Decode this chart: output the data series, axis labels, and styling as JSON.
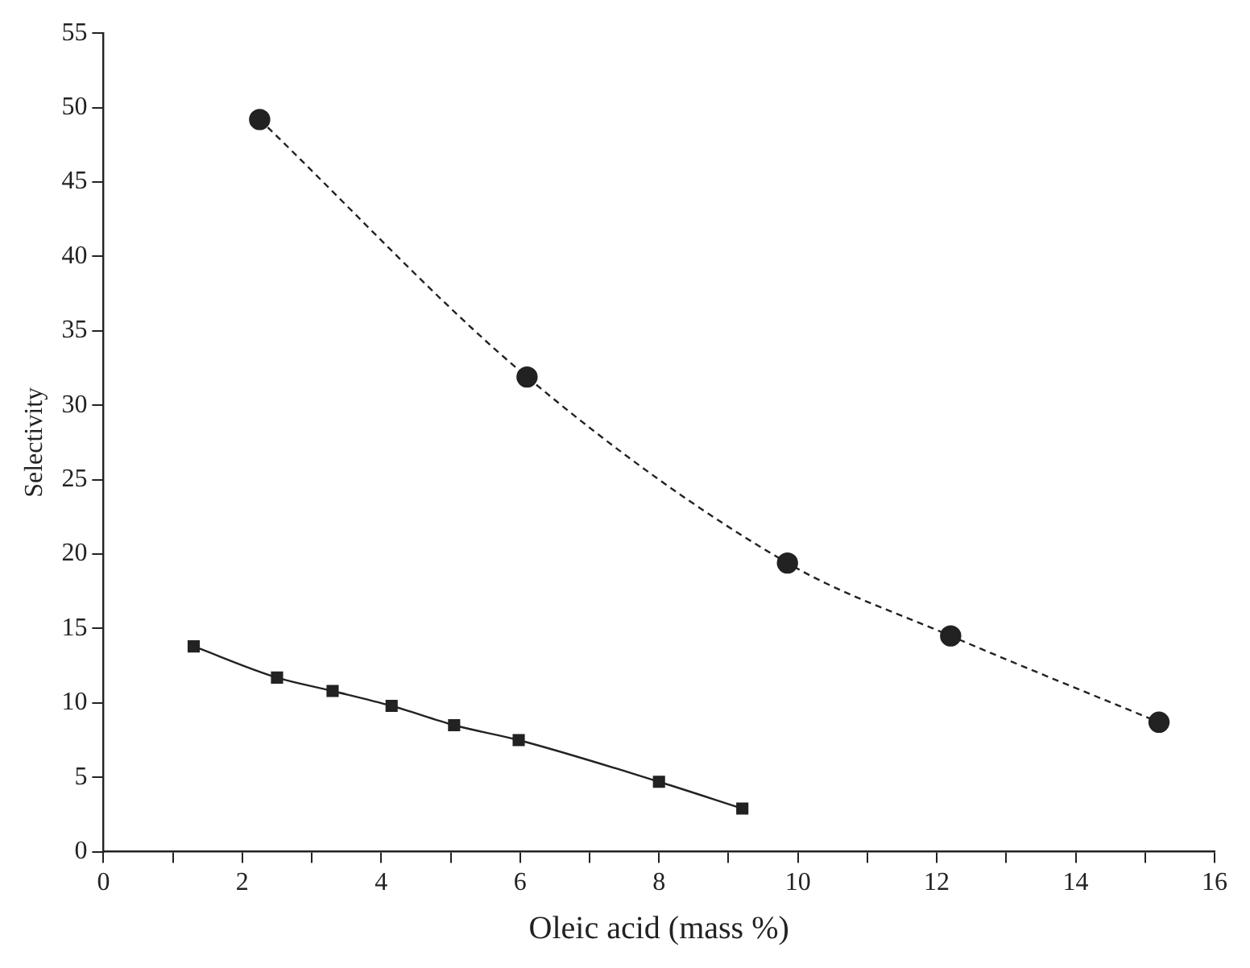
{
  "chart_data": {
    "type": "line",
    "xlabel": "Oleic acid (mass %)",
    "ylabel": "Selectivity",
    "xlim": [
      0,
      16
    ],
    "ylim": [
      0,
      55
    ],
    "xticks": [
      0,
      {
        "value": 1,
        "label": null
      },
      2,
      {
        "value": 3,
        "label": null
      },
      4,
      {
        "value": 5,
        "label": null
      },
      6,
      {
        "value": 7,
        "label": null
      },
      8,
      {
        "value": 9,
        "label": null
      },
      10,
      {
        "value": 11,
        "label": null
      },
      12,
      {
        "value": 13,
        "label": null
      },
      14,
      {
        "value": 15,
        "label": null
      },
      16
    ],
    "yticks": [
      0,
      5,
      10,
      15,
      20,
      25,
      30,
      35,
      40,
      45,
      50,
      55
    ],
    "grid": false,
    "legend": false,
    "series": [
      {
        "color": "#222222",
        "marker": "circle",
        "line_style": "dashed",
        "x": [
          2.25,
          6.1,
          9.85,
          12.2,
          15.2
        ],
        "values": [
          49.2,
          31.9,
          19.4,
          14.5,
          8.7
        ]
      },
      {
        "color": "#222222",
        "marker": "square",
        "line_style": "solid",
        "x": [
          1.3,
          2.5,
          3.3,
          4.15,
          5.05,
          5.98,
          8.0,
          9.2
        ],
        "values": [
          13.8,
          11.7,
          10.8,
          9.8,
          8.5,
          7.5,
          4.7,
          2.9
        ]
      }
    ]
  }
}
